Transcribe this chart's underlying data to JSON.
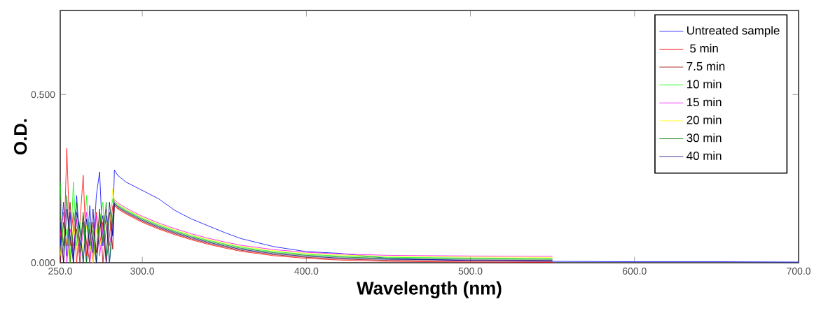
{
  "chart_data": {
    "type": "line",
    "xlabel": "Wavelength (nm)",
    "ylabel": "O.D.",
    "xlim": [
      250,
      700
    ],
    "ylim": [
      0,
      0.75
    ],
    "xticks": [
      {
        "value": 250,
        "label": "250.0"
      },
      {
        "value": 300,
        "label": "300.0"
      },
      {
        "value": 400,
        "label": "400.0"
      },
      {
        "value": 500,
        "label": "500.0"
      },
      {
        "value": 600,
        "label": "600.0"
      },
      {
        "value": 700,
        "label": "700.0"
      }
    ],
    "yticks": [
      {
        "value": 0,
        "label": "0.000"
      },
      {
        "value": 0.5,
        "label": "0.500"
      }
    ],
    "x": [
      250,
      252,
      254,
      256,
      258,
      260,
      262,
      264,
      266,
      268,
      270,
      272,
      274,
      276,
      278,
      280,
      282,
      283,
      285,
      290,
      300,
      310,
      320,
      330,
      340,
      350,
      360,
      380,
      400,
      420,
      450,
      500,
      550,
      600,
      650,
      700
    ],
    "legend": "top right",
    "series": [
      {
        "name": "Untreated sample",
        "color": "#0000ff",
        "values": [
          0.05,
          0.18,
          0.02,
          0.15,
          0.0,
          0.2,
          0.05,
          0.12,
          0.0,
          0.17,
          0.03,
          0.2,
          0.27,
          0.05,
          0.14,
          0.0,
          0.1,
          0.276,
          0.26,
          0.24,
          0.215,
          0.19,
          0.155,
          0.13,
          0.11,
          0.09,
          0.072,
          0.048,
          0.033,
          0.028,
          0.013,
          0.006,
          0.004,
          0.003,
          0.003,
          0.002
        ]
      },
      {
        "name": " 5 min",
        "color": "#ff0000",
        "values": [
          0.1,
          0.0,
          0.34,
          0.05,
          0.15,
          0.0,
          0.12,
          0.26,
          0.02,
          0.1,
          0.0,
          0.15,
          0.05,
          0.12,
          0.0,
          0.08,
          0.17,
          0.17,
          0.16,
          0.145,
          0.12,
          0.1,
          0.083,
          0.068,
          0.055,
          0.044,
          0.034,
          0.021,
          0.013,
          0.008,
          0.004,
          0.002,
          0.001,
          null,
          null,
          null
        ]
      },
      {
        "name": "7.5 min",
        "color": "#990000",
        "values": [
          0.0,
          0.12,
          0.05,
          0.18,
          0.02,
          0.1,
          0.0,
          0.14,
          0.06,
          0.0,
          0.12,
          0.03,
          0.16,
          0.0,
          0.1,
          0.15,
          0.04,
          0.173,
          0.163,
          0.148,
          0.123,
          0.103,
          0.086,
          0.071,
          0.058,
          0.047,
          0.037,
          0.024,
          0.016,
          0.011,
          0.007,
          0.005,
          0.004,
          null,
          null,
          null
        ]
      },
      {
        "name": "10 min",
        "color": "#00ff00",
        "values": [
          0.24,
          0.03,
          0.1,
          0.0,
          0.24,
          0.05,
          0.12,
          0.0,
          0.2,
          0.04,
          0.1,
          0.0,
          0.12,
          0.18,
          0.02,
          0.13,
          0.19,
          0.182,
          0.172,
          0.157,
          0.132,
          0.112,
          0.095,
          0.08,
          0.067,
          0.056,
          0.046,
          0.033,
          0.025,
          0.02,
          0.016,
          0.014,
          0.013,
          null,
          null,
          null
        ]
      },
      {
        "name": "15 min",
        "color": "#ff00ff",
        "values": [
          0.08,
          0.15,
          0.0,
          0.1,
          0.05,
          0.13,
          0.02,
          0.09,
          0.15,
          0.0,
          0.08,
          0.14,
          0.02,
          0.1,
          0.16,
          0.05,
          0.12,
          0.188,
          0.178,
          0.163,
          0.138,
          0.118,
          0.101,
          0.086,
          0.073,
          0.062,
          0.052,
          0.039,
          0.031,
          0.026,
          0.022,
          0.02,
          0.019,
          null,
          null,
          null
        ]
      },
      {
        "name": "20 min",
        "color": "#ffff00",
        "values": [
          0.02,
          0.1,
          0.06,
          0.0,
          0.12,
          0.04,
          0.09,
          0.03,
          0.11,
          0.06,
          0.0,
          0.1,
          0.05,
          0.08,
          0.12,
          0.11,
          0.22,
          0.185,
          0.175,
          0.16,
          0.135,
          0.115,
          0.098,
          0.083,
          0.07,
          0.059,
          0.049,
          0.036,
          0.028,
          0.023,
          0.019,
          0.017,
          0.016,
          null,
          null,
          null
        ]
      },
      {
        "name": "30 min",
        "color": "#008000",
        "values": [
          0.15,
          0.05,
          0.2,
          0.0,
          0.1,
          0.18,
          0.03,
          0.15,
          0.0,
          0.12,
          0.07,
          0.0,
          0.15,
          0.06,
          0.18,
          0.0,
          0.14,
          0.179,
          0.169,
          0.154,
          0.129,
          0.109,
          0.092,
          0.077,
          0.064,
          0.053,
          0.043,
          0.03,
          0.022,
          0.017,
          0.013,
          0.011,
          0.01,
          null,
          null,
          null
        ]
      },
      {
        "name": "40 min",
        "color": "#000080",
        "values": [
          0.12,
          0.0,
          0.16,
          0.08,
          0.0,
          0.15,
          0.1,
          0.0,
          0.13,
          0.05,
          0.16,
          0.0,
          0.1,
          0.14,
          0.0,
          0.18,
          0.08,
          0.176,
          0.166,
          0.151,
          0.126,
          0.106,
          0.089,
          0.074,
          0.061,
          0.05,
          0.04,
          0.027,
          0.019,
          0.014,
          0.01,
          0.008,
          0.007,
          null,
          null,
          null
        ]
      }
    ]
  }
}
